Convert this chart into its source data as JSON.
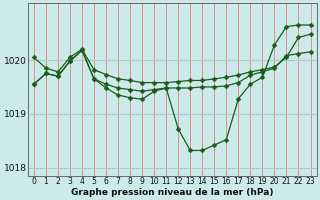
{
  "background_color": "#cceaea",
  "grid_color_v": "#e08080",
  "grid_color_h": "#aacccc",
  "line_color": "#1a5c1a",
  "marker_color": "#1a5c1a",
  "xlabel": "Graphe pression niveau de la mer (hPa)",
  "ylim": [
    1017.85,
    1021.05
  ],
  "yticks": [
    1018,
    1019,
    1020
  ],
  "xlim": [
    -0.5,
    23.5
  ],
  "xticks": [
    0,
    1,
    2,
    3,
    4,
    5,
    6,
    7,
    8,
    9,
    10,
    11,
    12,
    13,
    14,
    15,
    16,
    17,
    18,
    19,
    20,
    21,
    22,
    23
  ],
  "series": [
    {
      "x": [
        0,
        1,
        2,
        3,
        4,
        5,
        6,
        7,
        8,
        9,
        10,
        11,
        12,
        13,
        14,
        15,
        16,
        17,
        18,
        19,
        20,
        21,
        22,
        23
      ],
      "y": [
        1020.05,
        1019.85,
        1019.78,
        1020.05,
        1020.2,
        1019.82,
        1019.73,
        1019.65,
        1019.62,
        1019.58,
        1019.58,
        1019.58,
        1019.6,
        1019.62,
        1019.62,
        1019.65,
        1019.68,
        1019.72,
        1019.78,
        1019.82,
        1019.87,
        1020.05,
        1020.42,
        1020.48
      ]
    },
    {
      "x": [
        0,
        1,
        2,
        3,
        4,
        5,
        6,
        7,
        8,
        9,
        10,
        11,
        12,
        13,
        14,
        15,
        16,
        17,
        18,
        19,
        20,
        21,
        22,
        23
      ],
      "y": [
        1019.55,
        1019.75,
        1019.7,
        1019.98,
        1020.18,
        1019.65,
        1019.55,
        1019.48,
        1019.45,
        1019.42,
        1019.45,
        1019.48,
        1019.48,
        1019.48,
        1019.5,
        1019.5,
        1019.52,
        1019.58,
        1019.72,
        1019.78,
        1019.85,
        1020.08,
        1020.12,
        1020.15
      ]
    },
    {
      "x": [
        0,
        1,
        2,
        3,
        4,
        5,
        6,
        7,
        8,
        9,
        10,
        11,
        12,
        13,
        14,
        15,
        16,
        17,
        18,
        19,
        20,
        21,
        22,
        23
      ],
      "y": [
        1019.55,
        1019.75,
        1019.7,
        1019.98,
        1020.18,
        1019.65,
        1019.48,
        1019.35,
        1019.3,
        1019.27,
        1019.42,
        1019.48,
        1018.72,
        1018.32,
        1018.32,
        1018.42,
        1018.52,
        1019.28,
        1019.55,
        1019.68,
        1020.28,
        1020.62,
        1020.65,
        1020.65
      ]
    }
  ],
  "marker_size": 2.5,
  "linewidth": 0.9,
  "tick_fontsize": 5.5,
  "label_fontsize": 6.5
}
